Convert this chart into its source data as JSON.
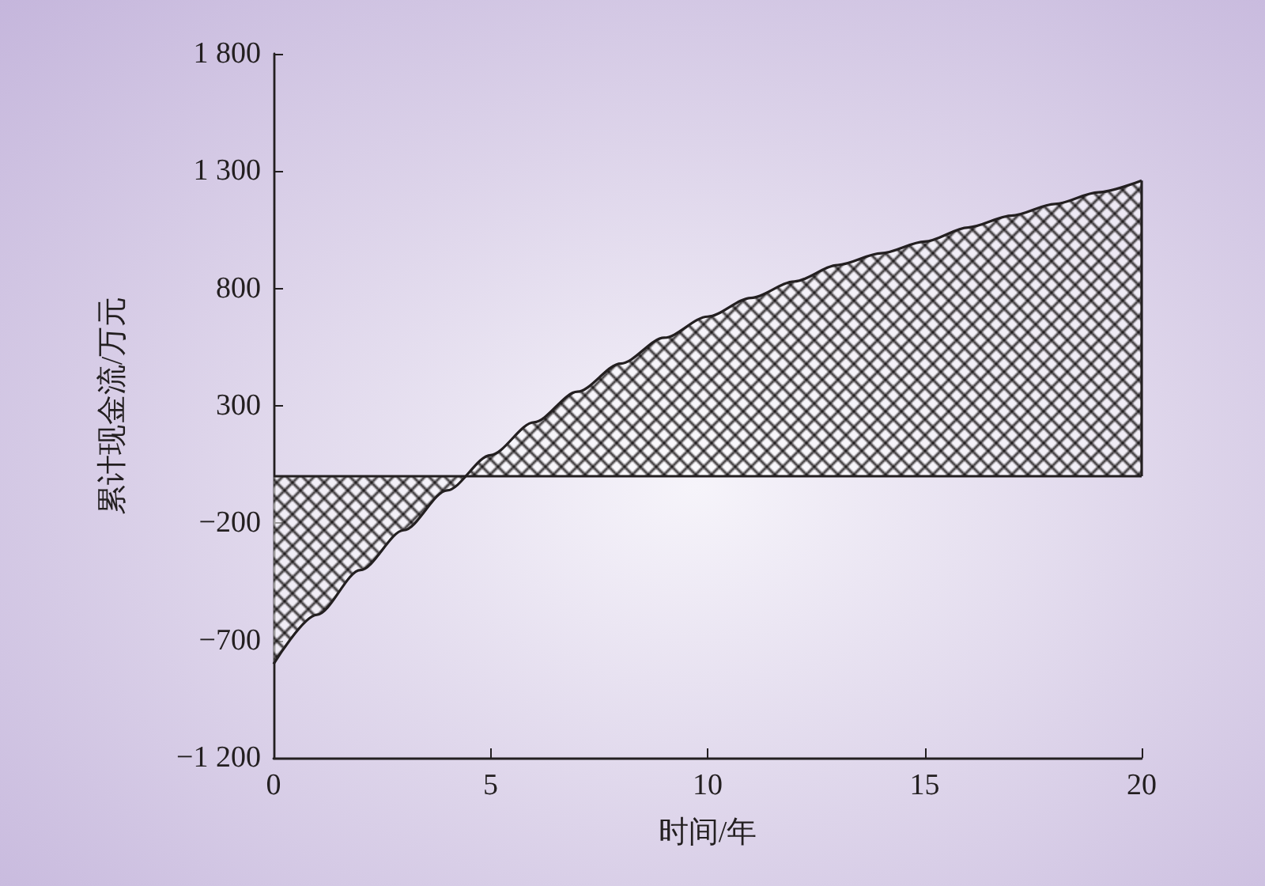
{
  "chart_data": {
    "type": "area",
    "xlabel": "时间/年",
    "ylabel": "累计现金流/万元",
    "x": [
      0,
      1,
      2,
      3,
      4,
      5,
      6,
      7,
      8,
      9,
      10,
      11,
      12,
      13,
      14,
      15,
      16,
      17,
      18,
      19,
      20
    ],
    "series": [
      {
        "color": "#231f20",
        "values": [
          -800,
          -590,
          -400,
          -230,
          -60,
          90,
          230,
          360,
          480,
          590,
          680,
          760,
          830,
          900,
          950,
          1000,
          1060,
          1110,
          1160,
          1210,
          1260
        ]
      }
    ],
    "xlim": [
      0,
      20
    ],
    "xticks": [
      0,
      5,
      10,
      15,
      20
    ],
    "ylim": [
      -1200,
      1800
    ],
    "yticks": [
      {
        "value": -1200,
        "label": "−1 200"
      },
      {
        "value": -700,
        "label": "−700"
      },
      {
        "value": -200,
        "label": "−200"
      },
      300,
      800,
      {
        "value": 1300,
        "label": "1 300"
      },
      {
        "value": 1800,
        "label": "1 800"
      }
    ],
    "ref_lines": [
      {
        "axis": "y",
        "value": 0,
        "color": "#231f20"
      }
    ],
    "grid": false,
    "marker": "none"
  }
}
